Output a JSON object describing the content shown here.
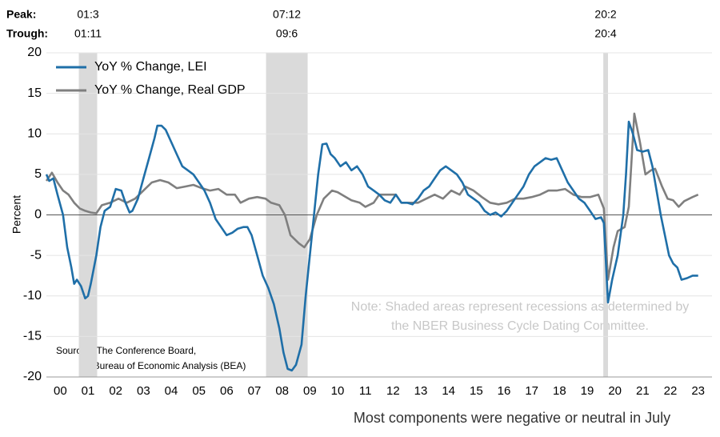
{
  "chart_data": {
    "type": "line",
    "ylabel": "Percent",
    "caption": "Most components were negative or neutral in July",
    "peak_label": "Peak:",
    "trough_label": "Trough:",
    "note": [
      "Note: Shaded areas represent recessions as determined by",
      "the NBER Business Cycle Dating Committee."
    ],
    "sources": [
      "Sources: The Conference Board,",
      "*Bureau of Economic Analysis (BEA)"
    ],
    "recessions": [
      {
        "start": 2001.17,
        "end": 2001.83,
        "peak": "01:3",
        "trough": "01:11"
      },
      {
        "start": 2007.92,
        "end": 2009.42,
        "peak": "07:12",
        "trough": "09:6"
      },
      {
        "start": 2020.08,
        "end": 2020.25,
        "peak": "20:2",
        "trough": "20:4"
      }
    ],
    "xlim": [
      2000,
      2024
    ],
    "xticks": [
      {
        "value": 2000.5,
        "label": "00"
      },
      {
        "value": 2001.5,
        "label": "01"
      },
      {
        "value": 2002.5,
        "label": "02"
      },
      {
        "value": 2003.5,
        "label": "03"
      },
      {
        "value": 2004.5,
        "label": "04"
      },
      {
        "value": 2005.5,
        "label": "05"
      },
      {
        "value": 2006.5,
        "label": "06"
      },
      {
        "value": 2007.5,
        "label": "07"
      },
      {
        "value": 2008.5,
        "label": "08"
      },
      {
        "value": 2009.5,
        "label": "09"
      },
      {
        "value": 2010.5,
        "label": "10"
      },
      {
        "value": 2011.5,
        "label": "11"
      },
      {
        "value": 2012.5,
        "label": "12"
      },
      {
        "value": 2013.5,
        "label": "13"
      },
      {
        "value": 2014.5,
        "label": "14"
      },
      {
        "value": 2015.5,
        "label": "15"
      },
      {
        "value": 2016.5,
        "label": "16"
      },
      {
        "value": 2017.5,
        "label": "17"
      },
      {
        "value": 2018.5,
        "label": "18"
      },
      {
        "value": 2019.5,
        "label": "19"
      },
      {
        "value": 2020.5,
        "label": "20"
      },
      {
        "value": 2021.5,
        "label": "21"
      },
      {
        "value": 2022.5,
        "label": "22"
      },
      {
        "value": 2023.5,
        "label": "23"
      }
    ],
    "ylim": [
      -20,
      20
    ],
    "yticks": [
      -20,
      -15,
      -10,
      -5,
      0,
      5,
      10,
      15,
      20
    ],
    "grid": true,
    "series": [
      {
        "name": "YoY % Change, LEI",
        "color": "#1f6fa8",
        "x": [
          2000.0,
          2000.1,
          2000.25,
          2000.4,
          2000.6,
          2000.75,
          2000.9,
          2001.0,
          2001.1,
          2001.25,
          2001.4,
          2001.5,
          2001.6,
          2001.8,
          2001.95,
          2002.1,
          2002.3,
          2002.5,
          2002.7,
          2002.85,
          2003.0,
          2003.1,
          2003.3,
          2003.5,
          2003.7,
          2003.9,
          2004.0,
          2004.15,
          2004.3,
          2004.5,
          2004.7,
          2004.9,
          2005.1,
          2005.3,
          2005.5,
          2005.7,
          2005.9,
          2006.1,
          2006.3,
          2006.5,
          2006.7,
          2006.9,
          2007.1,
          2007.25,
          2007.4,
          2007.6,
          2007.8,
          2008.0,
          2008.2,
          2008.4,
          2008.55,
          2008.7,
          2008.85,
          2009.0,
          2009.2,
          2009.35,
          2009.5,
          2009.65,
          2009.8,
          2009.95,
          2010.1,
          2010.25,
          2010.4,
          2010.6,
          2010.8,
          2011.0,
          2011.2,
          2011.4,
          2011.6,
          2011.8,
          2012.0,
          2012.2,
          2012.4,
          2012.6,
          2012.8,
          2013.0,
          2013.2,
          2013.4,
          2013.6,
          2013.8,
          2014.0,
          2014.2,
          2014.4,
          2014.6,
          2014.8,
          2015.0,
          2015.2,
          2015.4,
          2015.6,
          2015.8,
          2016.0,
          2016.2,
          2016.4,
          2016.6,
          2016.8,
          2017.0,
          2017.2,
          2017.4,
          2017.6,
          2017.8,
          2018.0,
          2018.2,
          2018.4,
          2018.6,
          2018.8,
          2019.0,
          2019.2,
          2019.4,
          2019.6,
          2019.8,
          2020.0,
          2020.1,
          2020.25,
          2020.4,
          2020.6,
          2020.8,
          2020.9,
          2021.0,
          2021.15,
          2021.3,
          2021.5,
          2021.7,
          2021.85,
          2022.0,
          2022.15,
          2022.3,
          2022.45,
          2022.6,
          2022.75,
          2022.9,
          2023.1,
          2023.3,
          2023.5
        ],
        "values": [
          5,
          4.2,
          4.5,
          2.5,
          0,
          -4,
          -6.5,
          -8.5,
          -8,
          -8.8,
          -10.3,
          -10,
          -8.5,
          -5,
          -1.5,
          0.5,
          1,
          3.2,
          3,
          1.5,
          0.3,
          0.5,
          2,
          4.5,
          7,
          9.5,
          11,
          11,
          10.5,
          9,
          7.5,
          6,
          5.5,
          5,
          4,
          3,
          1.5,
          -0.5,
          -1.5,
          -2.5,
          -2.2,
          -1.7,
          -1.5,
          -1.5,
          -2.5,
          -5,
          -7.5,
          -9,
          -11,
          -14,
          -17,
          -19,
          -19.2,
          -18.5,
          -16,
          -10,
          -5,
          0,
          5,
          8.7,
          8.8,
          7.5,
          7,
          6,
          6.5,
          5.5,
          6,
          5,
          3.5,
          3,
          2.5,
          1.8,
          1.5,
          2.5,
          1.5,
          1.5,
          1.3,
          2,
          3,
          3.5,
          4.5,
          5.5,
          6,
          5.5,
          5,
          4,
          2.5,
          2,
          1.5,
          0.5,
          0,
          0.3,
          -0.2,
          0.5,
          1.5,
          2.5,
          3.5,
          5,
          6,
          6.5,
          7,
          6.8,
          7,
          5.5,
          4,
          3,
          2,
          1.5,
          0.5,
          -0.5,
          -0.3,
          -1,
          -10.8,
          -8,
          -5,
          0,
          5,
          11.5,
          10,
          8,
          7.8,
          8,
          6,
          3,
          0,
          -2.5,
          -5,
          -6,
          -6.5,
          -8,
          -7.8,
          -7.5,
          -7.5
        ]
      },
      {
        "name": "YoY % Change, Real GDP",
        "color": "#7f7f7f",
        "x": [
          2000.0,
          2000.2,
          2000.4,
          2000.6,
          2000.8,
          2001.0,
          2001.2,
          2001.4,
          2001.6,
          2001.8,
          2002.0,
          2002.3,
          2002.6,
          2002.9,
          2003.2,
          2003.5,
          2003.8,
          2004.1,
          2004.4,
          2004.7,
          2005.0,
          2005.3,
          2005.6,
          2005.9,
          2006.2,
          2006.5,
          2006.8,
          2007.0,
          2007.3,
          2007.6,
          2007.9,
          2008.1,
          2008.4,
          2008.6,
          2008.8,
          2009.1,
          2009.3,
          2009.5,
          2009.75,
          2010.0,
          2010.3,
          2010.5,
          2010.8,
          2011.0,
          2011.3,
          2011.5,
          2011.8,
          2012.0,
          2012.3,
          2012.6,
          2012.8,
          2013.1,
          2013.4,
          2013.7,
          2014.0,
          2014.3,
          2014.6,
          2014.9,
          2015.1,
          2015.4,
          2015.7,
          2016.0,
          2016.3,
          2016.6,
          2016.9,
          2017.2,
          2017.5,
          2017.8,
          2018.1,
          2018.4,
          2018.7,
          2019.0,
          2019.3,
          2019.6,
          2019.9,
          2020.1,
          2020.25,
          2020.45,
          2020.6,
          2020.85,
          2021.0,
          2021.2,
          2021.4,
          2021.6,
          2021.8,
          2021.95,
          2022.2,
          2022.4,
          2022.6,
          2022.8,
          2023.0,
          2023.3,
          2023.5
        ],
        "values": [
          4.2,
          5.2,
          4,
          3,
          2.5,
          1.5,
          0.8,
          0.5,
          0.3,
          0.2,
          1.2,
          1.5,
          2,
          1.5,
          2,
          3,
          4,
          4.3,
          4,
          3.3,
          3.5,
          3.7,
          3.3,
          3,
          3.2,
          2.5,
          2.5,
          1.5,
          2,
          2.2,
          2,
          1.5,
          1.2,
          0,
          -2.5,
          -3.5,
          -4,
          -3,
          0,
          2,
          3,
          2.8,
          2.2,
          1.8,
          1.5,
          1,
          1.5,
          2.5,
          2.5,
          2.5,
          1.5,
          1.5,
          1.5,
          2,
          2.5,
          2,
          3,
          2.5,
          3.5,
          3,
          2.2,
          1.5,
          1.3,
          1.5,
          2,
          2,
          2.2,
          2.5,
          3,
          3,
          3.2,
          2.5,
          2.2,
          2.2,
          2.5,
          0.8,
          -8,
          -4,
          -2,
          -1.5,
          1,
          12.5,
          9,
          5,
          5.5,
          5.7,
          3.5,
          2,
          1.8,
          1,
          1.7,
          2.2,
          2.5
        ]
      }
    ]
  }
}
